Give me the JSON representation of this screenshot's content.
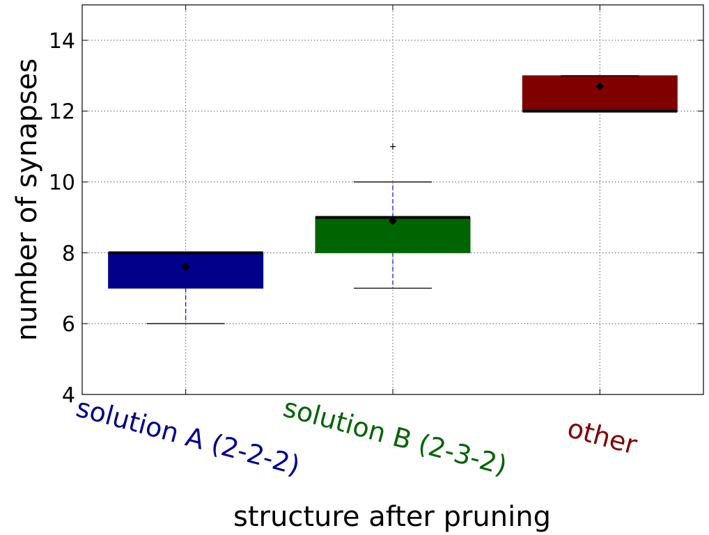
{
  "chart_data": {
    "type": "box",
    "xlabel": "structure after pruning",
    "ylabel": "number of synapses",
    "ylim": [
      4,
      15
    ],
    "yticks": [
      4,
      6,
      8,
      10,
      12,
      14
    ],
    "grid": true,
    "categories": [
      {
        "label": "solution A (2-2-2)",
        "color": "#00008b",
        "q1": 7,
        "median": 8,
        "q3": 8,
        "whisker_low": 6,
        "whisker_high": 8,
        "mean": 7.6,
        "outliers": []
      },
      {
        "label": "solution B (2-3-2)",
        "color": "#006400",
        "q1": 8,
        "median": 9,
        "q3": 9,
        "whisker_low": 7,
        "whisker_high": 10,
        "mean": 8.9,
        "outliers": [
          11
        ]
      },
      {
        "label": "other",
        "color": "#800000",
        "q1": 12,
        "median": 12,
        "q3": 13,
        "whisker_low": 12,
        "whisker_high": 13,
        "mean": 12.7,
        "outliers": []
      }
    ]
  }
}
